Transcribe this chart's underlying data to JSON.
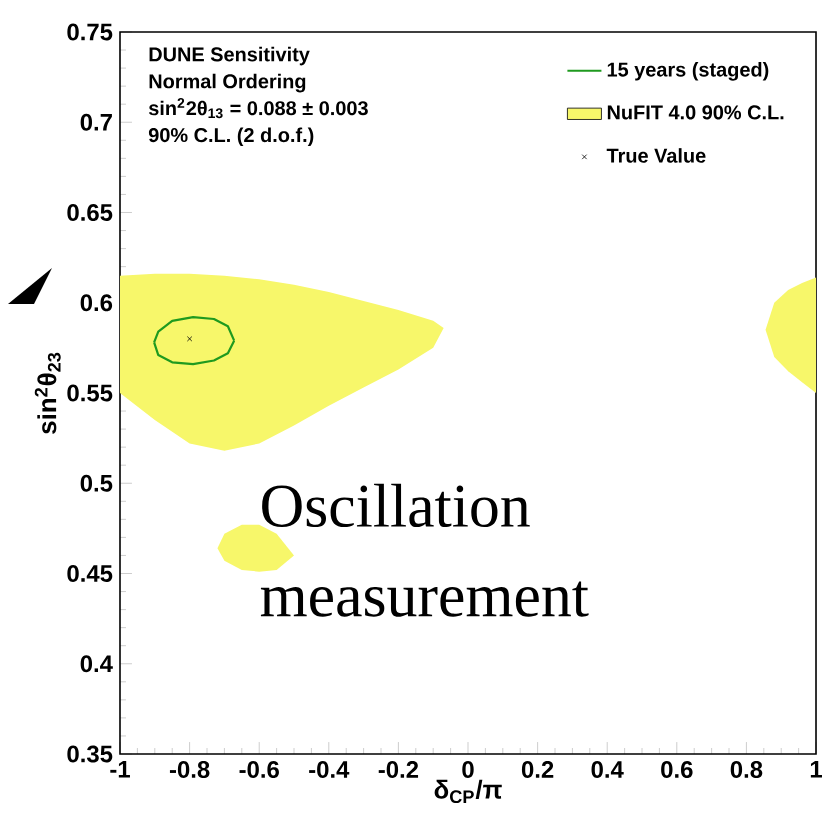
{
  "chart_data": {
    "type": "line",
    "xlabel": "δ$_{CP}$/π",
    "ylabel": "sin$^{2}$θ$_{23}$",
    "xlim": [
      -1,
      1
    ],
    "ylim": [
      0.35,
      0.75
    ],
    "xticks": [
      -1,
      -0.8,
      -0.6,
      -0.4,
      -0.2,
      0,
      0.2,
      0.4,
      0.6,
      0.8,
      1
    ],
    "yticks": [
      0.35,
      0.4,
      0.45,
      0.5,
      0.55,
      0.6,
      0.65,
      0.7,
      0.75
    ],
    "legend": "top right",
    "grid": false,
    "annotations": [
      "DUNE Sensitivity",
      "Normal Ordering",
      "sin$^{2}$2θ$_{13}$ = 0.088 ± 0.003",
      "90% C.L. (2 d.o.f.)",
      "Oscillation measurement"
    ],
    "series": [
      {
        "name": "NuFIT 4.0 90% C.L.",
        "type": "area",
        "color": "#f7f76a",
        "x": [
          -1,
          -0.9,
          -0.8,
          -0.7,
          -0.6,
          -0.5,
          -0.4,
          -0.3,
          -0.2,
          -0.1,
          -0.07
        ],
        "values": [
          null,
          null,
          null,
          null,
          null,
          null,
          null,
          null,
          null,
          null,
          null
        ],
        "lower": [
          0.55,
          0.535,
          0.522,
          0.518,
          0.522,
          0.532,
          0.543,
          0.553,
          0.563,
          0.575,
          0.586
        ],
        "upper": [
          0.615,
          0.616,
          0.616,
          0.615,
          0.613,
          0.61,
          0.606,
          0.601,
          0.596,
          0.59,
          0.586
        ]
      },
      {
        "type": "area",
        "color": "#f7f76a",
        "x": [
          -0.72,
          -0.7,
          -0.65,
          -0.6,
          -0.55,
          -0.5
        ],
        "values": [
          null,
          null,
          null,
          null,
          null,
          null
        ],
        "lower": [
          0.464,
          0.457,
          0.452,
          0.451,
          0.452,
          0.46
        ],
        "upper": [
          0.464,
          0.472,
          0.477,
          0.477,
          0.472,
          0.46
        ]
      },
      {
        "type": "area",
        "color": "#f7f76a",
        "x": [
          0.855,
          0.88,
          0.92,
          0.96,
          1
        ],
        "values": [
          null,
          null,
          null,
          null,
          null
        ],
        "lower": [
          0.585,
          0.57,
          0.562,
          0.556,
          0.55
        ],
        "upper": [
          0.585,
          0.6,
          0.607,
          0.611,
          0.614
        ]
      },
      {
        "name": "15 years (staged)",
        "color": "#1f9a1f",
        "line_style": "solid",
        "x": [
          -0.902,
          -0.89,
          -0.85,
          -0.79,
          -0.73,
          -0.69,
          -0.672
        ],
        "values": [
          0.578,
          0.584,
          0.59,
          0.592,
          0.591,
          0.587,
          0.579
        ]
      },
      {
        "color": "#1f9a1f",
        "line_style": "solid",
        "x": [
          -0.902,
          -0.89,
          -0.85,
          -0.79,
          -0.73,
          -0.69,
          -0.672
        ],
        "values": [
          0.578,
          0.571,
          0.567,
          0.566,
          0.568,
          0.572,
          0.579
        ]
      },
      {
        "name": "True Value",
        "type": "scatter",
        "color": "#000000",
        "marker": "cross",
        "x": [
          -0.8
        ],
        "values": [
          0.58
        ]
      }
    ]
  }
}
